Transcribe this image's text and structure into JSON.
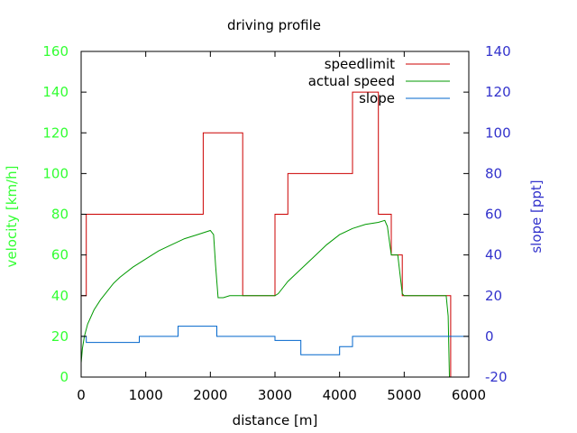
{
  "chart_data": {
    "type": "line",
    "title": "driving profile",
    "xlabel": "distance [m]",
    "ylabel_left": "velocity [km/h]",
    "ylabel_right": "slope [ppt]",
    "xlim": [
      0,
      6000
    ],
    "ylim_left": [
      0,
      160
    ],
    "ylim_right": [
      -20,
      140
    ],
    "x_ticks": [
      "0",
      "1000",
      "2000",
      "3000",
      "4000",
      "5000",
      "6000"
    ],
    "y_left_ticks": [
      "0",
      "20",
      "40",
      "60",
      "80",
      "100",
      "120",
      "140",
      "160"
    ],
    "y_right_ticks": [
      "-20",
      "0",
      "20",
      "40",
      "60",
      "80",
      "100",
      "120",
      "140"
    ],
    "grid": false,
    "legend_position": "top-right",
    "colors": {
      "left_axis": "#33ff33",
      "right_axis": "#3333cc",
      "speedlimit": "#cc0000",
      "actual_speed": "#009900",
      "slope": "#0066cc",
      "frame": "#000000"
    },
    "series": [
      {
        "name": "speedlimit",
        "axis": "left",
        "x": [
          0,
          80,
          80,
          1890,
          1890,
          2500,
          2500,
          3000,
          3000,
          3200,
          3200,
          4200,
          4200,
          4600,
          4600,
          4800,
          4800,
          4970,
          4970,
          5700,
          5700,
          5720,
          5720
        ],
        "y": [
          40,
          40,
          80,
          80,
          120,
          120,
          40,
          40,
          80,
          80,
          100,
          100,
          140,
          140,
          80,
          80,
          60,
          60,
          40,
          40,
          40,
          40,
          0
        ]
      },
      {
        "name": "actual speed",
        "axis": "left",
        "x": [
          0,
          20,
          50,
          100,
          200,
          300,
          400,
          500,
          600,
          800,
          1000,
          1200,
          1400,
          1600,
          1800,
          2000,
          2050,
          2080,
          2120,
          2200,
          2300,
          2500,
          2700,
          2900,
          3000,
          3050,
          3100,
          3200,
          3400,
          3600,
          3800,
          4000,
          4200,
          4400,
          4600,
          4700,
          4740,
          4800,
          4850,
          4900,
          4970,
          5000,
          5300,
          5600,
          5650,
          5680,
          5700
        ],
        "y": [
          7,
          14,
          20,
          26,
          33,
          38,
          42,
          46,
          49,
          54,
          58,
          62,
          65,
          68,
          70,
          72,
          70,
          55,
          39,
          39,
          40,
          40,
          40,
          40,
          40,
          41,
          43,
          47,
          53,
          59,
          65,
          70,
          73,
          75,
          76,
          77,
          74,
          60,
          60,
          60,
          41,
          40,
          40,
          40,
          40,
          30,
          0
        ]
      },
      {
        "name": "slope",
        "axis": "right",
        "x": [
          0,
          80,
          80,
          900,
          900,
          1500,
          1500,
          2100,
          2100,
          3000,
          3000,
          3400,
          3400,
          4000,
          4000,
          4200,
          4200,
          6000
        ],
        "y": [
          0,
          0,
          -3,
          -3,
          0,
          0,
          5,
          5,
          0,
          0,
          -2,
          -2,
          -9,
          -9,
          -5,
          -5,
          0,
          0
        ]
      }
    ]
  }
}
